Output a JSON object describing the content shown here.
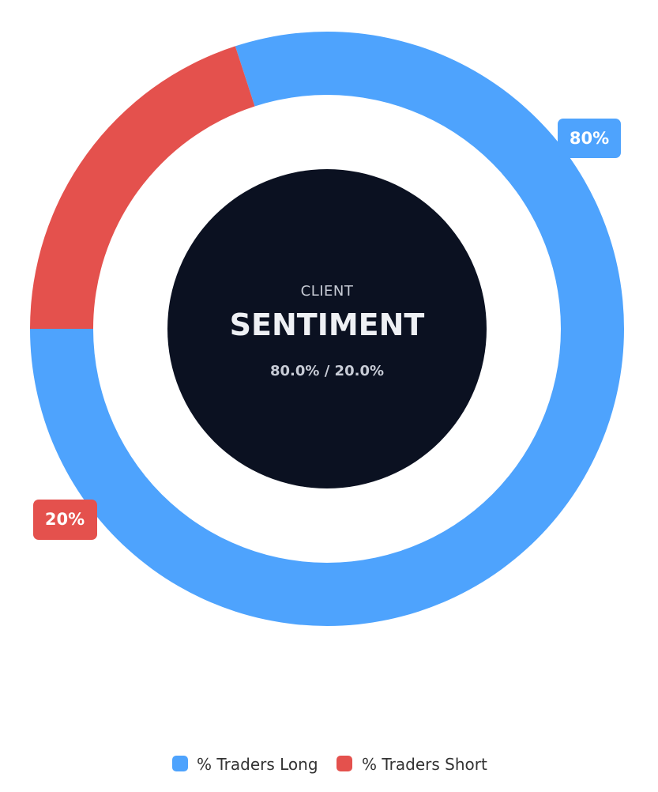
{
  "colors": {
    "long": "#4ea3fd",
    "short": "#e4514d",
    "center_fill": "#0b1121",
    "background": "#ffffff"
  },
  "chart_data": {
    "type": "pie",
    "subtype": "donut",
    "categories": [
      "% Traders Long",
      "% Traders Short"
    ],
    "values": [
      80,
      20
    ],
    "data_labels": [
      "80%",
      "20%"
    ],
    "legend_placement": "bottom",
    "center": {
      "subtitle": "CLIENT",
      "title": "SENTIMENT",
      "ratio": "80.0% / 20.0%"
    }
  }
}
